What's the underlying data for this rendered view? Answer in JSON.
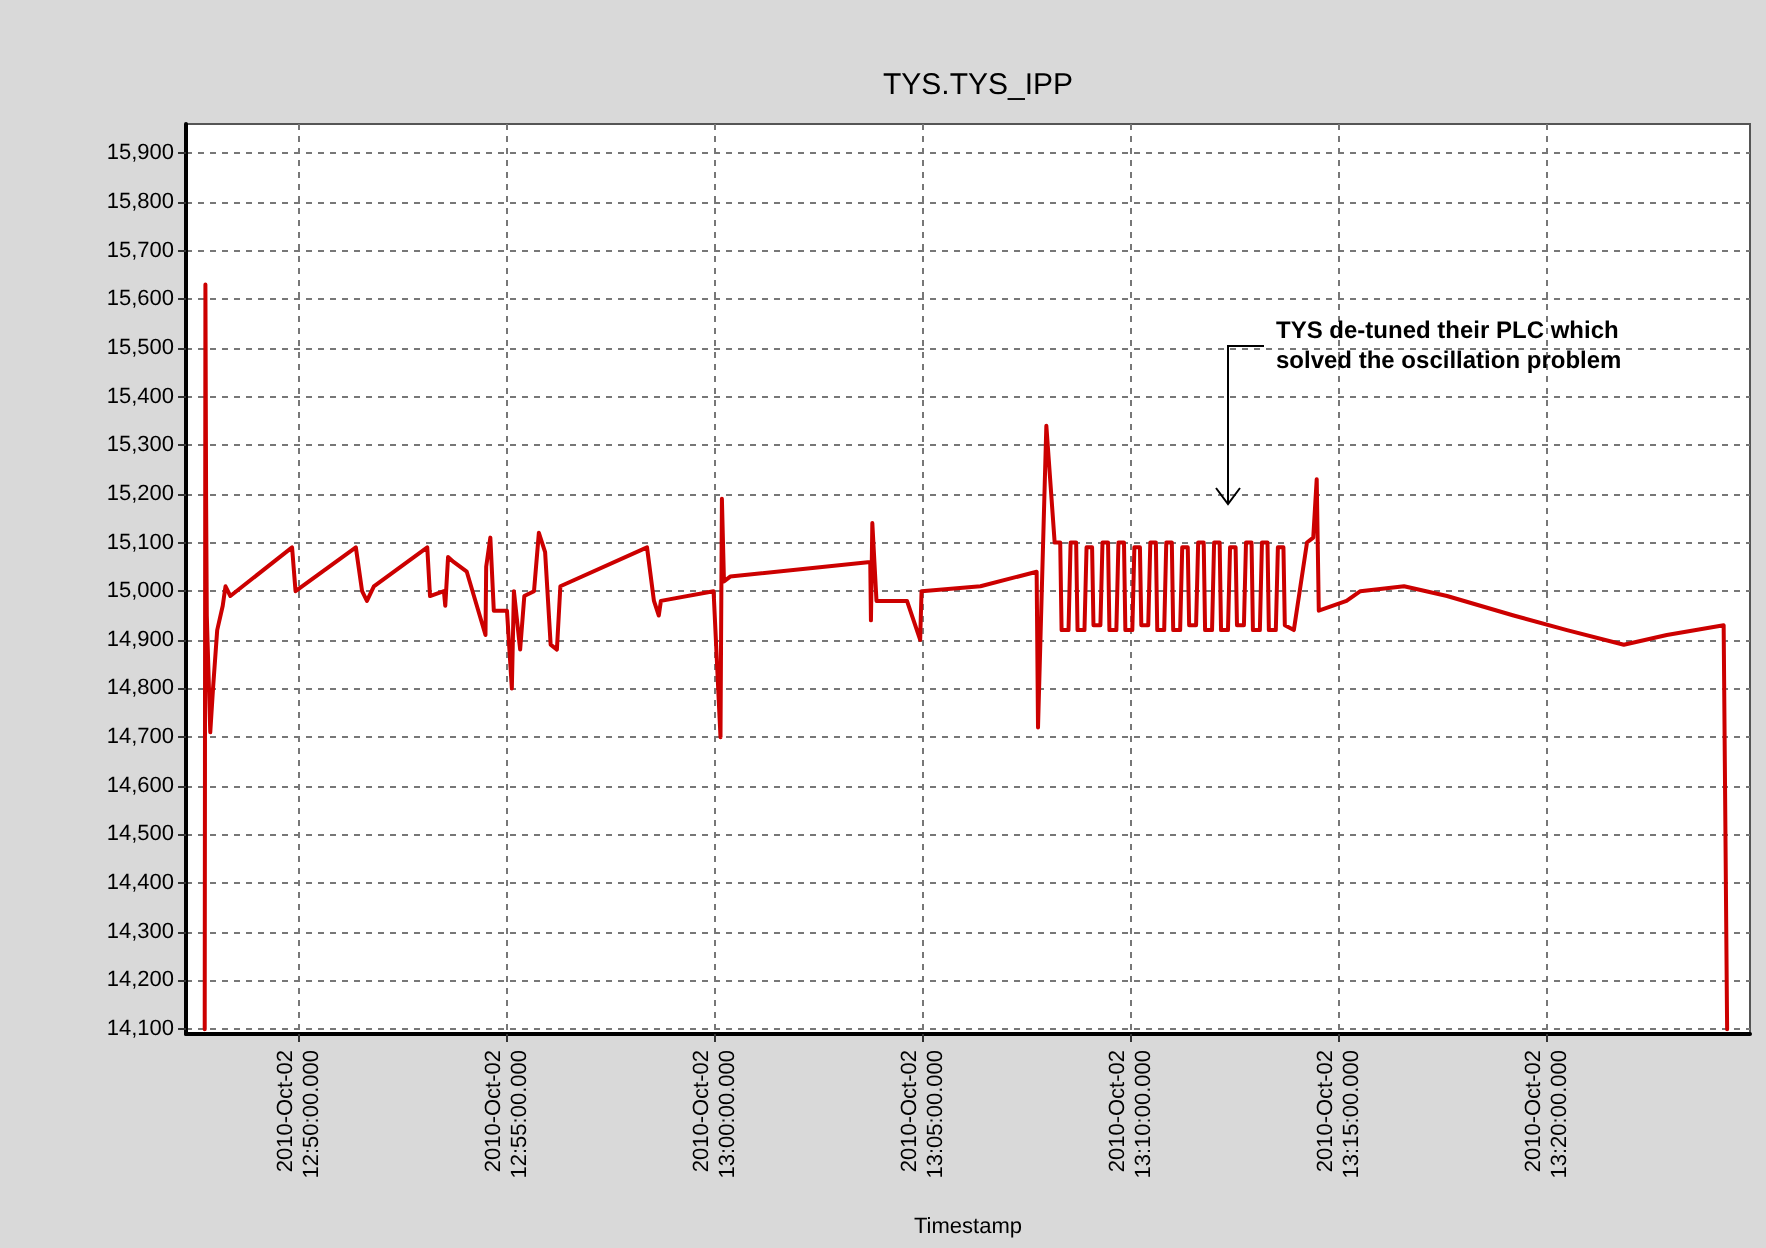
{
  "chart_data": {
    "type": "line",
    "title": "TYS.TYS_IPP",
    "xlabel": "Timestamp",
    "xlim": [
      "2010-10-02T12:47:17",
      "2010-10-02T13:24:53"
    ],
    "xticks": [
      {
        "value": "2010-10-02T12:50",
        "label": "2010-Oct-02 12:50:00.000"
      },
      {
        "value": "2010-10-02T12:55",
        "label": "2010-Oct-02 12:55:00.000"
      },
      {
        "value": "2010-10-02T13:00",
        "label": "2010-Oct-02 13:00:00.000"
      },
      {
        "value": "2010-10-02T13:05",
        "label": "2010-Oct-02 13:05:00.000"
      },
      {
        "value": "2010-10-02T13:10",
        "label": "2010-Oct-02 13:10:00.000"
      },
      {
        "value": "2010-10-02T13:15",
        "label": "2010-Oct-02 13:15:00.000"
      },
      {
        "value": "2010-10-02T13:20",
        "label": "2010-Oct-02 13:20:00.000"
      }
    ],
    "ylim": [
      14090,
      15960
    ],
    "yticks": [
      {
        "value": 14100,
        "label": "14,100"
      },
      {
        "value": 14200,
        "label": "14,200"
      },
      {
        "value": 14300,
        "label": "14,300"
      },
      {
        "value": 14400,
        "label": "14,400"
      },
      {
        "value": 14500,
        "label": "14,500"
      },
      {
        "value": 14600,
        "label": "14,600"
      },
      {
        "value": 14700,
        "label": "14,700"
      },
      {
        "value": 14800,
        "label": "14,800"
      },
      {
        "value": 14900,
        "label": "14,900"
      },
      {
        "value": 15000,
        "label": "15,000"
      },
      {
        "value": 15100,
        "label": "15,100"
      },
      {
        "value": 15200,
        "label": "15,200"
      },
      {
        "value": 15300,
        "label": "15,300"
      },
      {
        "value": 15400,
        "label": "15,400"
      },
      {
        "value": 15500,
        "label": "15,500"
      },
      {
        "value": 15600,
        "label": "15,600"
      },
      {
        "value": 15700,
        "label": "15,700"
      },
      {
        "value": 15800,
        "label": "15,800"
      },
      {
        "value": 15900,
        "label": "15,900"
      }
    ],
    "grid": true,
    "marker": "none",
    "line_style": "solid",
    "annotations": [
      "TYS de-tuned their PLC which\nsolved the oscillation problem"
    ],
    "series": [
      {
        "color": "#cc0000",
        "x": [
          "2010-10-02T12:47:44",
          "2010-10-02T12:47:45",
          "2010-10-02T12:47:46",
          "2010-10-02T12:47:47",
          "2010-10-02T12:47:52",
          "2010-10-02T12:47:56",
          "2010-10-02T12:48:02",
          "2010-10-02T12:48:10",
          "2010-10-02T12:48:14",
          "2010-10-02T12:48:21",
          "2010-10-02T12:49:50",
          "2010-10-02T12:49:55",
          "2010-10-02T12:51:22",
          "2010-10-02T12:51:31",
          "2010-10-02T12:51:38",
          "2010-10-02T12:51:48",
          "2010-10-02T12:53:05",
          "2010-10-02T12:53:09",
          "2010-10-02T12:53:29",
          "2010-10-02T12:53:31",
          "2010-10-02T12:53:35",
          "2010-10-02T12:53:43",
          "2010-10-02T12:54:02",
          "2010-10-02T12:54:29",
          "2010-10-02T12:54:30",
          "2010-10-02T12:54:36",
          "2010-10-02T12:54:41",
          "2010-10-02T12:55:00",
          "2010-10-02T12:55:07",
          "2010-10-02T12:55:10",
          "2010-10-02T12:55:19",
          "2010-10-02T12:55:25",
          "2010-10-02T12:55:39",
          "2010-10-02T12:55:46",
          "2010-10-02T12:55:55",
          "2010-10-02T12:56:03",
          "2010-10-02T12:56:12",
          "2010-10-02T12:56:17",
          "2010-10-02T12:58:22",
          "2010-10-02T12:58:32",
          "2010-10-02T12:58:39",
          "2010-10-02T12:58:42",
          "2010-10-02T12:59:58",
          "2010-10-02T13:00:08",
          "2010-10-02T13:00:10",
          "2010-10-02T13:00:13",
          "2010-10-02T13:00:22",
          "2010-10-02T13:03:44",
          "2010-10-02T13:03:45",
          "2010-10-02T13:03:47",
          "2010-10-02T13:03:53",
          "2010-10-02T13:04:37",
          "2010-10-02T13:04:56",
          "2010-10-02T13:04:58",
          "2010-10-02T13:06:23",
          "2010-10-02T13:07:44",
          "2010-10-02T13:07:46",
          "2010-10-02T13:07:58",
          "2010-10-02T13:08:10",
          "2010-10-02T13:08:18",
          "2010-10-02T13:08:20",
          "2010-10-02T13:08:30",
          "2010-10-02T13:08:33",
          "2010-10-02T13:08:41",
          "2010-10-02T13:08:43",
          "2010-10-02T13:08:53",
          "2010-10-02T13:08:56",
          "2010-10-02T13:09:04",
          "2010-10-02T13:09:06",
          "2010-10-02T13:09:16",
          "2010-10-02T13:09:19",
          "2010-10-02T13:09:27",
          "2010-10-02T13:09:29",
          "2010-10-02T13:09:39",
          "2010-10-02T13:09:42",
          "2010-10-02T13:09:50",
          "2010-10-02T13:09:52",
          "2010-10-02T13:10:02",
          "2010-10-02T13:10:05",
          "2010-10-02T13:10:13",
          "2010-10-02T13:10:15",
          "2010-10-02T13:10:25",
          "2010-10-02T13:10:28",
          "2010-10-02T13:10:36",
          "2010-10-02T13:10:38",
          "2010-10-02T13:10:48",
          "2010-10-02T13:10:51",
          "2010-10-02T13:10:59",
          "2010-10-02T13:11:01",
          "2010-10-02T13:11:11",
          "2010-10-02T13:11:14",
          "2010-10-02T13:11:22",
          "2010-10-02T13:11:24",
          "2010-10-02T13:11:34",
          "2010-10-02T13:11:37",
          "2010-10-02T13:11:45",
          "2010-10-02T13:11:47",
          "2010-10-02T13:11:57",
          "2010-10-02T13:12:00",
          "2010-10-02T13:12:08",
          "2010-10-02T13:12:10",
          "2010-10-02T13:12:20",
          "2010-10-02T13:12:23",
          "2010-10-02T13:12:31",
          "2010-10-02T13:12:33",
          "2010-10-02T13:12:43",
          "2010-10-02T13:12:46",
          "2010-10-02T13:12:54",
          "2010-10-02T13:12:56",
          "2010-10-02T13:13:06",
          "2010-10-02T13:13:09",
          "2010-10-02T13:13:17",
          "2010-10-02T13:13:19",
          "2010-10-02T13:13:29",
          "2010-10-02T13:13:32",
          "2010-10-02T13:13:40",
          "2010-10-02T13:13:42",
          "2010-10-02T13:13:55",
          "2010-10-02T13:14:14",
          "2010-10-02T13:14:23",
          "2010-10-02T13:14:28",
          "2010-10-02T13:14:31",
          "2010-10-02T13:15:11",
          "2010-10-02T13:15:31",
          "2010-10-02T13:16:34",
          "2010-10-02T13:17:36",
          "2010-10-02T13:19:12",
          "2010-10-02T13:20:29",
          "2010-10-02T13:21:51",
          "2010-10-02T13:22:53",
          "2010-10-02T13:24:15",
          "2010-10-02T13:24:20"
        ],
        "values": [
          14100,
          15630,
          15190,
          14950,
          14710,
          14800,
          14920,
          14970,
          15010,
          14990,
          15090,
          15000,
          15090,
          15000,
          14980,
          15010,
          15090,
          14990,
          15000,
          14970,
          15070,
          15060,
          15040,
          14910,
          15050,
          15110,
          14960,
          14960,
          14800,
          15000,
          14880,
          14990,
          15000,
          15120,
          15080,
          14890,
          14880,
          15010,
          15090,
          14980,
          14950,
          14980,
          15000,
          14700,
          15190,
          15020,
          15030,
          15060,
          14940,
          15140,
          14980,
          14980,
          14900,
          15000,
          15010,
          15040,
          14720,
          15340,
          15100,
          15100,
          14920,
          14920,
          15100,
          15100,
          14920,
          14920,
          15090,
          15090,
          14930,
          14930,
          15100,
          15100,
          14920,
          14920,
          15100,
          15100,
          14920,
          14920,
          15090,
          15090,
          14930,
          14930,
          15100,
          15100,
          14920,
          14920,
          15100,
          15100,
          14920,
          14920,
          15090,
          15090,
          14930,
          14930,
          15100,
          15100,
          14920,
          14920,
          15100,
          15100,
          14920,
          14920,
          15090,
          15090,
          14930,
          14930,
          15100,
          15100,
          14920,
          14920,
          15100,
          15100,
          14920,
          14920,
          15090,
          15090,
          14930,
          14920,
          15100,
          15110,
          15230,
          14960,
          14980,
          15000,
          15010,
          14990,
          14950,
          14920,
          14890,
          14910,
          14930,
          14100
        ]
      }
    ]
  }
}
